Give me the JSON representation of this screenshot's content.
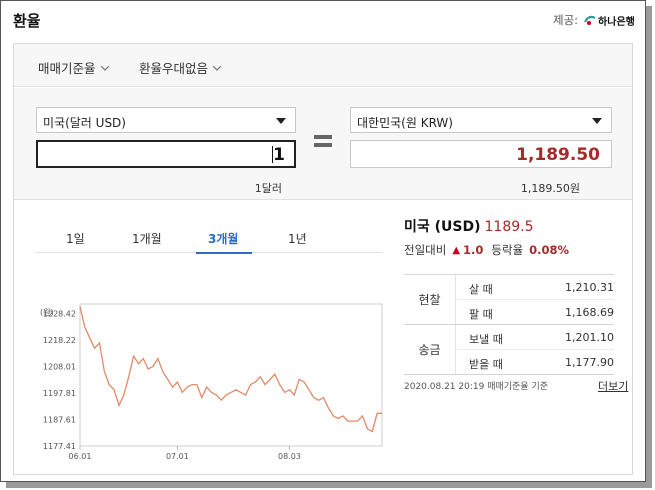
{
  "header": {
    "title": "환율",
    "provider_label": "제공:",
    "provider_name": "하나은행"
  },
  "filters": {
    "rate_basis": "매매기준율",
    "preferential": "환율우대없음"
  },
  "converter": {
    "from_currency": "미국(달러 USD)",
    "to_currency": "대한민국(원 KRW)",
    "from_amount": "1",
    "to_amount": "1,189.50",
    "from_caption": "1달러",
    "to_caption": "1,189.50원"
  },
  "period_tabs": [
    {
      "label": "1일",
      "active": false
    },
    {
      "label": "1개월",
      "active": false
    },
    {
      "label": "3개월",
      "active": true
    },
    {
      "label": "1년",
      "active": false
    }
  ],
  "summary": {
    "currency": "미국 (USD)",
    "rate": "1189.5",
    "change_label": "전일대비",
    "change_value": "1.0",
    "change_direction": "up",
    "pct_label": "등락율",
    "pct_value": "0.08%"
  },
  "rate_table": {
    "groups": [
      {
        "label": "현찰",
        "rows": [
          {
            "label": "살 때",
            "value": "1,210.31"
          },
          {
            "label": "팔 때",
            "value": "1,168.69"
          }
        ]
      },
      {
        "label": "송금",
        "rows": [
          {
            "label": "보낼 때",
            "value": "1,201.10"
          },
          {
            "label": "받을 때",
            "value": "1,177.90"
          }
        ]
      }
    ]
  },
  "footnote": "2020.08.21 20:19 매매기준율 기준",
  "more_link": "더보기",
  "colors": {
    "accent": "#2a6cc7",
    "price_red": "#a52a2a",
    "line": "#e08a6a"
  },
  "chart_data": {
    "type": "line",
    "unit_label": "(원)",
    "x_ticks": [
      "06.01",
      "07.01",
      "08.03"
    ],
    "y_ticks": [
      1228.42,
      1218.22,
      1208.01,
      1197.81,
      1187.61,
      1177.41
    ],
    "ylim": [
      1177.41,
      1232.0
    ],
    "grid": false,
    "series": [
      {
        "values": [
          1231,
          1223,
          1219,
          1215,
          1217,
          1206,
          1201,
          1199,
          1193,
          1197,
          1204,
          1212,
          1209,
          1211,
          1207,
          1208,
          1211,
          1206,
          1203,
          1200,
          1202,
          1198,
          1200,
          1201,
          1201,
          1196,
          1200,
          1198,
          1197,
          1195,
          1197,
          1198,
          1199,
          1198,
          1197,
          1201,
          1202,
          1204,
          1201,
          1203,
          1205,
          1201,
          1198,
          1199,
          1197,
          1203,
          1202,
          1199,
          1196,
          1195,
          1196,
          1192,
          1189,
          1188,
          1189,
          1187,
          1187,
          1187,
          1189,
          1184,
          1183,
          1190,
          1190
        ]
      }
    ]
  }
}
